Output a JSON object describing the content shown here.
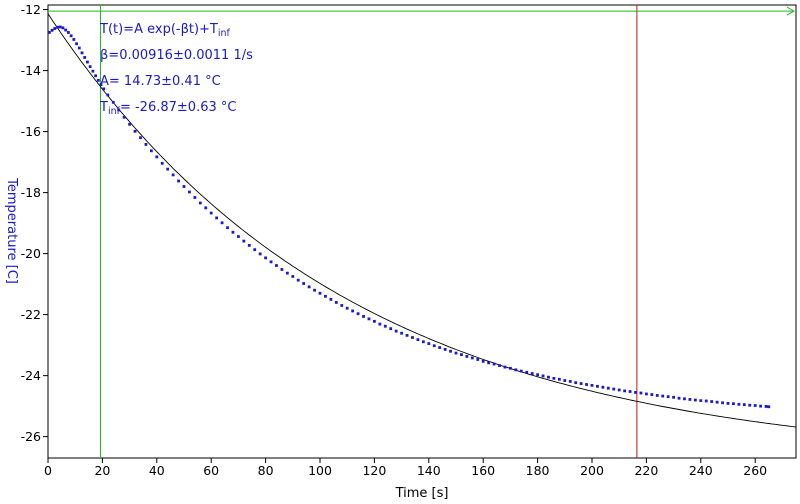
{
  "chart_data": {
    "type": "scatter",
    "xlabel": "Time [s]",
    "ylabel": "Temperature [C]",
    "xlim": [
      0,
      275
    ],
    "ylim": [
      -26.7,
      -11.85
    ],
    "xticks": [
      0,
      20,
      40,
      60,
      80,
      100,
      120,
      140,
      160,
      180,
      200,
      220,
      240,
      260
    ],
    "yticks": [
      -12,
      -14,
      -16,
      -18,
      -20,
      -22,
      -24,
      -26
    ],
    "grid": false,
    "fit": {
      "model": "T(t)=A exp(-βt)+T_inf",
      "beta": 0.00916,
      "A": 14.73,
      "T_inf": -26.87,
      "color": "#000000"
    },
    "annotations": {
      "eq_main": "T(t)=A exp(-βt)+T",
      "eq_sub": "inf",
      "beta": "β=0.00916±0.0011 1/s",
      "A": "A= 14.73±0.41 °C",
      "tinf_main": "T",
      "tinf_sub": "inf",
      "tinf_rest": "= -26.87±0.63 °C"
    },
    "cursors": [
      {
        "orientation": "vertical",
        "x": 19.3,
        "color": "#22bb22"
      },
      {
        "orientation": "vertical",
        "x": 216.5,
        "color": "#c01818"
      },
      {
        "orientation": "horizontal",
        "y": -12.05,
        "color": "#22bb22"
      }
    ],
    "series": [
      {
        "color": "#1a1acd",
        "points": [
          [
            0.5,
            -12.75
          ],
          [
            1.5,
            -12.68
          ],
          [
            2.5,
            -12.62
          ],
          [
            3.5,
            -12.58
          ],
          [
            4.5,
            -12.57
          ],
          [
            5.5,
            -12.6
          ],
          [
            6.5,
            -12.67
          ],
          [
            7.5,
            -12.75
          ],
          [
            8.5,
            -12.86
          ],
          [
            9.5,
            -12.98
          ],
          [
            10.5,
            -13.12
          ],
          [
            11.5,
            -13.26
          ],
          [
            12.5,
            -13.42
          ],
          [
            13.5,
            -13.57
          ],
          [
            14.5,
            -13.72
          ],
          [
            15.5,
            -13.87
          ],
          [
            16.5,
            -14.02
          ],
          [
            17.5,
            -14.17
          ],
          [
            18.5,
            -14.32
          ],
          [
            19.5,
            -14.46
          ],
          [
            20.5,
            -14.6
          ],
          [
            22,
            -14.8
          ],
          [
            24,
            -15.04
          ],
          [
            26,
            -15.29
          ],
          [
            28,
            -15.53
          ],
          [
            30,
            -15.76
          ],
          [
            32,
            -15.99
          ],
          [
            34,
            -16.2
          ],
          [
            36,
            -16.42
          ],
          [
            38,
            -16.63
          ],
          [
            40,
            -16.83
          ],
          [
            42,
            -17.04
          ],
          [
            44,
            -17.23
          ],
          [
            46,
            -17.42
          ],
          [
            48,
            -17.62
          ],
          [
            50,
            -17.8
          ],
          [
            52,
            -17.98
          ],
          [
            54,
            -18.16
          ],
          [
            56,
            -18.34
          ],
          [
            58,
            -18.5
          ],
          [
            60,
            -18.67
          ],
          [
            62,
            -18.83
          ],
          [
            64,
            -18.99
          ],
          [
            66,
            -19.15
          ],
          [
            68,
            -19.3
          ],
          [
            70,
            -19.44
          ],
          [
            72,
            -19.59
          ],
          [
            74,
            -19.73
          ],
          [
            76,
            -19.87
          ],
          [
            78,
            -20.01
          ],
          [
            80,
            -20.14
          ],
          [
            82,
            -20.27
          ],
          [
            84,
            -20.39
          ],
          [
            86,
            -20.52
          ],
          [
            88,
            -20.64
          ],
          [
            90,
            -20.75
          ],
          [
            92,
            -20.87
          ],
          [
            94,
            -20.98
          ],
          [
            96,
            -21.09
          ],
          [
            98,
            -21.2
          ],
          [
            100,
            -21.3
          ],
          [
            102,
            -21.4
          ],
          [
            104,
            -21.5
          ],
          [
            106,
            -21.6
          ],
          [
            108,
            -21.7
          ],
          [
            110,
            -21.79
          ],
          [
            112,
            -21.88
          ],
          [
            114,
            -21.97
          ],
          [
            116,
            -22.06
          ],
          [
            118,
            -22.14
          ],
          [
            120,
            -22.22
          ],
          [
            122,
            -22.31
          ],
          [
            124,
            -22.38
          ],
          [
            126,
            -22.46
          ],
          [
            128,
            -22.54
          ],
          [
            130,
            -22.61
          ],
          [
            132,
            -22.68
          ],
          [
            134,
            -22.75
          ],
          [
            136,
            -22.82
          ],
          [
            138,
            -22.89
          ],
          [
            140,
            -22.95
          ],
          [
            142,
            -23.02
          ],
          [
            144,
            -23.08
          ],
          [
            146,
            -23.14
          ],
          [
            148,
            -23.2
          ],
          [
            150,
            -23.26
          ],
          [
            152,
            -23.31
          ],
          [
            154,
            -23.37
          ],
          [
            156,
            -23.42
          ],
          [
            158,
            -23.47
          ],
          [
            160,
            -23.53
          ],
          [
            162,
            -23.58
          ],
          [
            164,
            -23.62
          ],
          [
            166,
            -23.67
          ],
          [
            168,
            -23.72
          ],
          [
            170,
            -23.76
          ],
          [
            172,
            -23.81
          ],
          [
            174,
            -23.85
          ],
          [
            176,
            -23.89
          ],
          [
            178,
            -23.93
          ],
          [
            180,
            -23.97
          ],
          [
            182,
            -24.01
          ],
          [
            184,
            -24.05
          ],
          [
            186,
            -24.09
          ],
          [
            188,
            -24.12
          ],
          [
            190,
            -24.16
          ],
          [
            192,
            -24.19
          ],
          [
            194,
            -24.23
          ],
          [
            196,
            -24.26
          ],
          [
            198,
            -24.29
          ],
          [
            200,
            -24.32
          ],
          [
            202,
            -24.35
          ],
          [
            204,
            -24.38
          ],
          [
            206,
            -24.41
          ],
          [
            208,
            -24.44
          ],
          [
            210,
            -24.47
          ],
          [
            212,
            -24.5
          ],
          [
            214,
            -24.52
          ],
          [
            216,
            -24.55
          ],
          [
            218,
            -24.57
          ],
          [
            220,
            -24.6
          ],
          [
            222,
            -24.62
          ],
          [
            224,
            -24.65
          ],
          [
            226,
            -24.67
          ],
          [
            228,
            -24.69
          ],
          [
            230,
            -24.71
          ],
          [
            232,
            -24.74
          ],
          [
            234,
            -24.76
          ],
          [
            236,
            -24.78
          ],
          [
            238,
            -24.8
          ],
          [
            240,
            -24.82
          ],
          [
            242,
            -24.83
          ],
          [
            244,
            -24.85
          ],
          [
            246,
            -24.87
          ],
          [
            248,
            -24.89
          ],
          [
            250,
            -24.91
          ],
          [
            252,
            -24.92
          ],
          [
            254,
            -24.94
          ],
          [
            256,
            -24.95
          ],
          [
            258,
            -24.97
          ],
          [
            260,
            -24.98
          ],
          [
            262,
            -25.0
          ],
          [
            264,
            -25.01
          ],
          [
            265,
            -25.02
          ]
        ]
      }
    ]
  }
}
